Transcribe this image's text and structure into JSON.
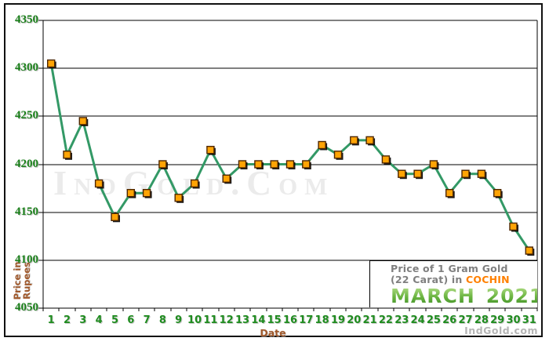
{
  "watermarks": {
    "center": "IndGold.Com",
    "bottom": "IndGold.com"
  },
  "info_box": {
    "line1": "Price of 1 Gram Gold",
    "line2_prefix": "(22 Carat) in ",
    "line2_highlight": "COCHIN",
    "line3_month": "MARCH",
    "line3_year": "2021"
  },
  "colors": {
    "line_green": "#339966",
    "marker_fill": "#ffa405",
    "marker_border": "#4d2600",
    "marker_shadow": "#000000",
    "axis_number_green": "#1f8c1f",
    "axis_title_brown": "#a0592c",
    "info_text_gray": "#7f7f7f",
    "cochin_orange": "#ff8000",
    "march_green_light": "#b9e18e",
    "march_green_dark": "#3d8d26",
    "gridline": "#000000"
  },
  "chart_data": {
    "type": "line",
    "title": "Price of 1 Gram Gold (22 Carat) in COCHIN",
    "subtitle": "MARCH 2021",
    "xlabel": "Date",
    "ylabel": "Price in Rupees",
    "ylabel_lines": [
      "Price in",
      "Rupees"
    ],
    "x": [
      1,
      2,
      3,
      4,
      5,
      6,
      7,
      8,
      9,
      10,
      11,
      12,
      13,
      14,
      15,
      16,
      17,
      18,
      19,
      20,
      21,
      22,
      23,
      24,
      25,
      26,
      27,
      28,
      29,
      30,
      31
    ],
    "values": [
      4305,
      4210,
      4245,
      4180,
      4145,
      4170,
      4170,
      4200,
      4165,
      4180,
      4215,
      4185,
      4200,
      4200,
      4200,
      4200,
      4200,
      4220,
      4210,
      4225,
      4225,
      4205,
      4190,
      4190,
      4200,
      4170,
      4190,
      4190,
      4170,
      4135,
      4110
    ],
    "ylim": [
      4050,
      4350
    ],
    "y_ticks": [
      4350,
      4300,
      4250,
      4200,
      4150,
      4100,
      4050
    ],
    "grid": true,
    "legend": "none"
  }
}
